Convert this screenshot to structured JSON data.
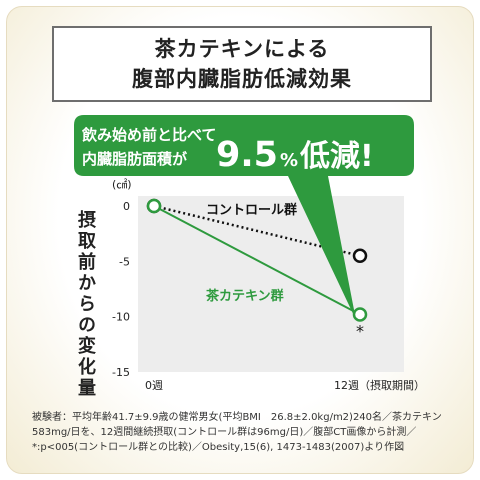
{
  "title": {
    "line1": "茶カテキンによる",
    "line2": "腹部内臓脂肪低減効果"
  },
  "callout": {
    "line1": "飲み始め前と比べて",
    "line2": "内臓脂肪面積が",
    "value": "9.5",
    "unit": "%",
    "suffix": "低減!"
  },
  "colors": {
    "green": "#2e9a3e",
    "plot_bg": "#ededed",
    "black": "#111111"
  },
  "chart_data": {
    "type": "line",
    "ylabel": "摂取前からの変化量",
    "yunit": "(㎠)",
    "ylim": [
      -15,
      0
    ],
    "yticks": [
      0,
      -5,
      -10,
      -15
    ],
    "x_ticks": [
      "0週",
      "12週（摂取期間）"
    ],
    "series": [
      {
        "name": "コントロール群",
        "values": [
          0,
          -4.5
        ],
        "style": "dotted",
        "color": "#111111"
      },
      {
        "name": "茶カテキン群",
        "values": [
          0,
          -9.8
        ],
        "style": "solid",
        "color": "#2e9a3e"
      }
    ],
    "annotation": "*"
  },
  "footnote": "被験者：平均年齢41.7±9.9歳の健常男女(平均BMI　26.8±2.0kg/m2)240名／茶カテキン583mg/日を、12週間継続摂取(コントロール群は96mg/日)／腹部CT画像から計測／*:p<005(コントロール群との比較)／Obesity,15(6), 1473-1483(2007)より作図"
}
